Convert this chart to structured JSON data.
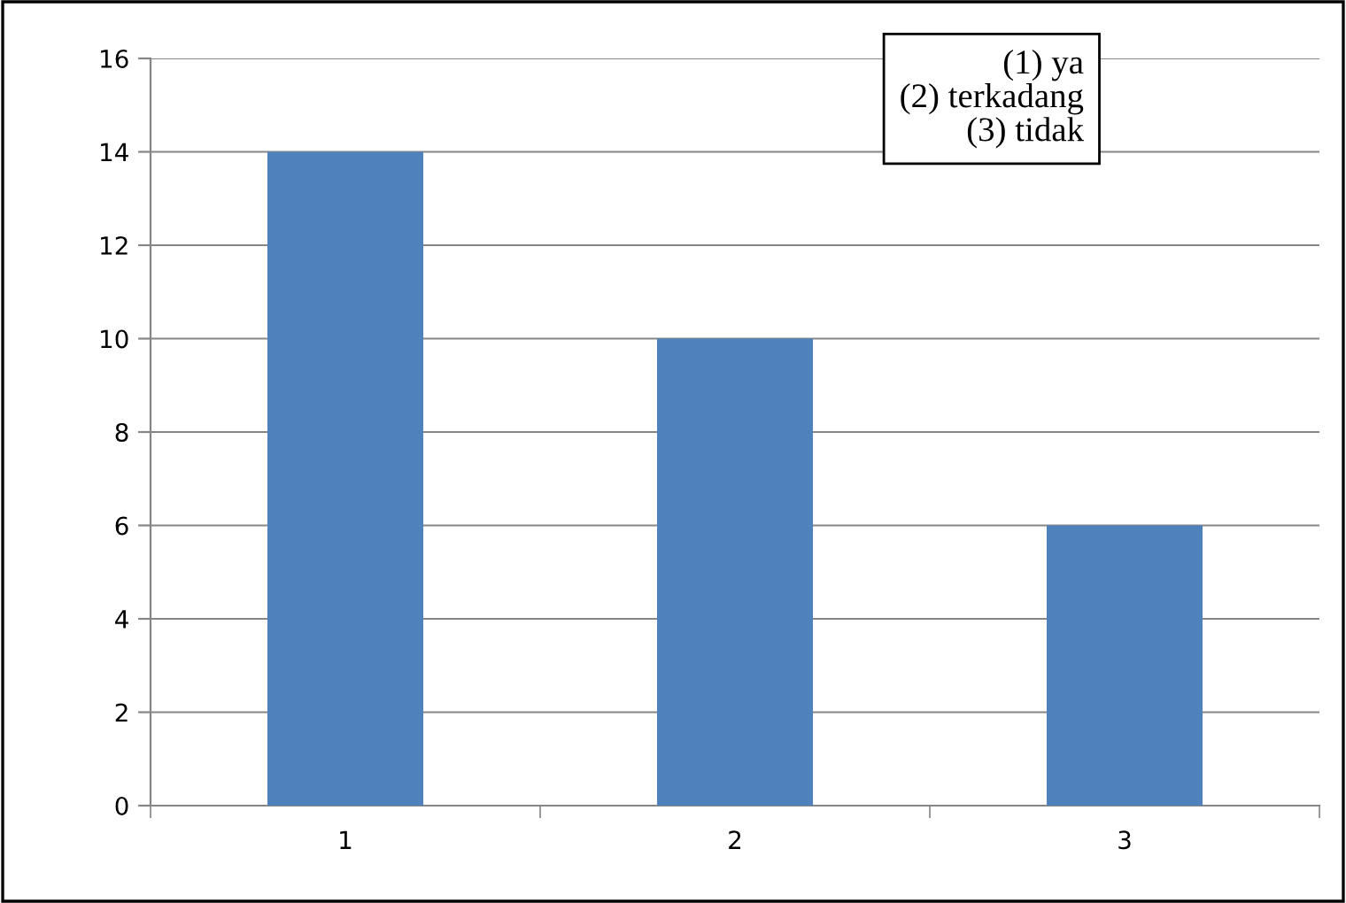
{
  "chart_data": {
    "type": "bar",
    "categories": [
      "1",
      "2",
      "3"
    ],
    "values": [
      14,
      10,
      6
    ],
    "color": "#4f81bd",
    "ylim": [
      0,
      16
    ],
    "yticks": [
      0,
      2,
      4,
      6,
      8,
      10,
      12,
      14,
      16
    ],
    "grid": "y",
    "legend": false,
    "annotations": [
      "(1) ya",
      "(2) terkadang",
      "(3) tidak"
    ]
  }
}
